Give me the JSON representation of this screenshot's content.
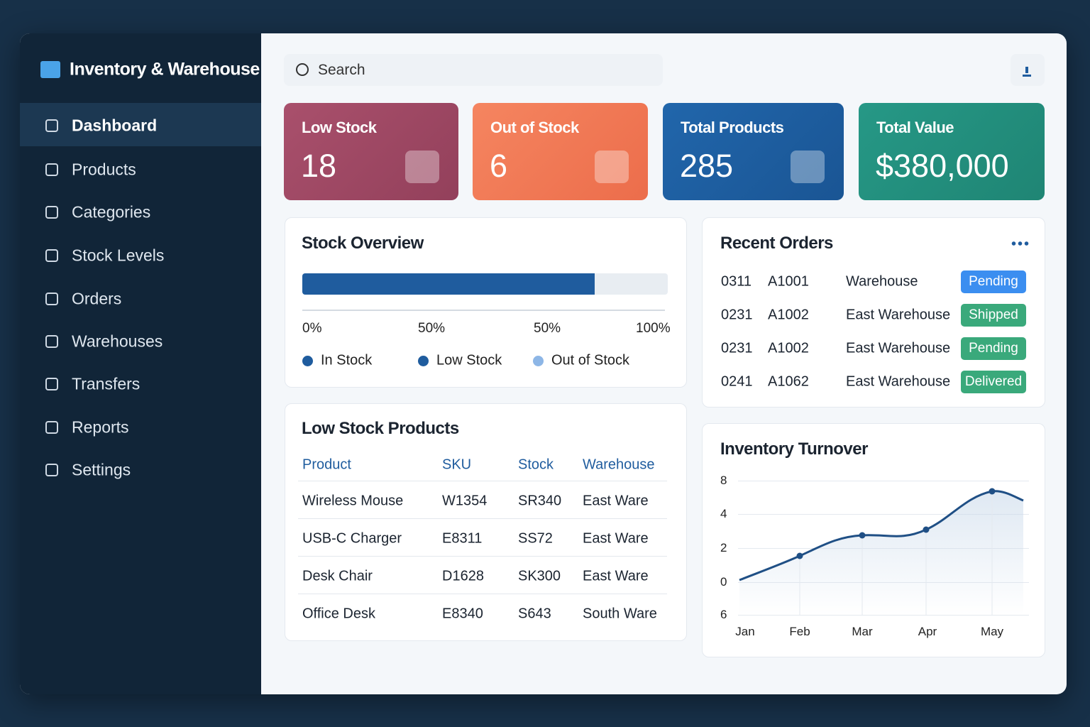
{
  "sidebar": {
    "title": "Inventory & Warehouse",
    "nav": [
      "Dashboard",
      "Products",
      "Categories",
      "Stock Levels",
      "Orders",
      "Warehouses",
      "Transfers",
      "Reports",
      "Settings"
    ]
  },
  "search": {
    "placeholder": "Search"
  },
  "kpis": [
    {
      "label": "Low Stock",
      "value": 18
    },
    {
      "label": "Out of Stock",
      "value": 6
    },
    {
      "label": "Total Products",
      "value": 285
    },
    {
      "label": "Total Value",
      "value": 380000,
      "value_label": "$380,000"
    }
  ],
  "stock_overview": {
    "title": "Stock Overview",
    "progress": 80,
    "axis_labels": [
      "0%",
      "50%",
      "50%",
      "100%"
    ],
    "legend": [
      {
        "name": "In Stock",
        "color": "#1f5c9e"
      },
      {
        "name": "Low Stock",
        "color": "#1f5c9e"
      },
      {
        "name": "Out of Stock",
        "color": "#8db6e6"
      }
    ]
  },
  "recent_orders": {
    "title": "Recent Orders",
    "rows": [
      {
        "date": "0311",
        "id": "A1001",
        "warehouse": "Warehouse",
        "status": "Pending",
        "color": "#3b8ef0"
      },
      {
        "date": "0231",
        "id": "A1002",
        "warehouse": "East Warehouse",
        "status": "Shipped",
        "color": "#3aa97b"
      },
      {
        "date": "0231",
        "id": "A1002",
        "warehouse": "East Warehouse",
        "status": "Pending",
        "color": "#3aa97b"
      },
      {
        "date": "0241",
        "id": "A1062",
        "warehouse": "East Warehouse",
        "status": "Delivered",
        "color": "#3aa97b"
      }
    ]
  },
  "low_stock_products": {
    "title": "Low Stock Products",
    "columns": [
      "Product",
      "SKU",
      "Stock",
      "Warehouse"
    ],
    "rows": [
      [
        "Wireless Mouse",
        "W1354",
        "SR340",
        "East Ware"
      ],
      [
        "USB-C Charger",
        "E8311",
        "SS72",
        "East Ware"
      ],
      [
        "Desk Chair",
        "D1628",
        "SK300",
        "East Ware"
      ],
      [
        "Office Desk",
        "E8340",
        "S643",
        "South Ware"
      ]
    ]
  },
  "inventory_turnover": {
    "title": "Inventory Turnover",
    "y_labels": [
      "8",
      "4",
      "2",
      "0",
      "6"
    ],
    "x_labels": [
      "Jan",
      "Feb",
      "Mar",
      "Apr",
      "May"
    ]
  }
}
